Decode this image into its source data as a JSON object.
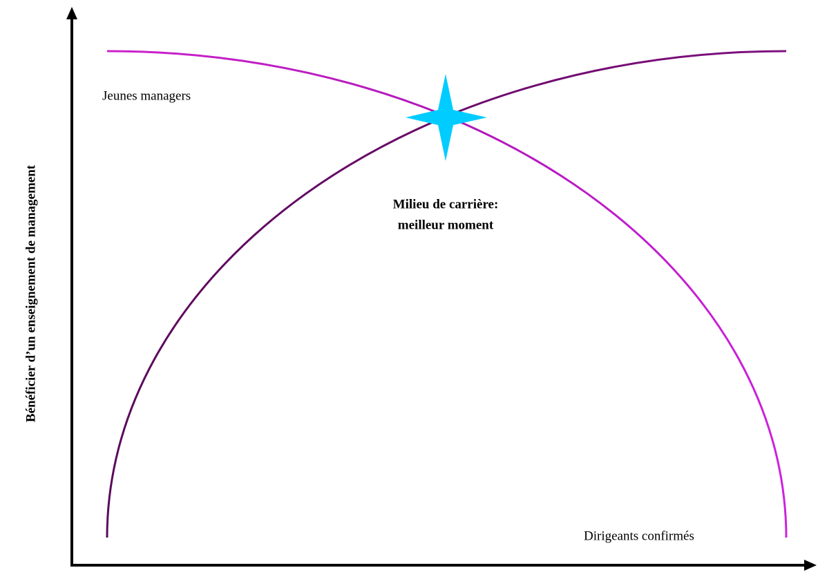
{
  "y_axis_label": "Bénéficier d’un enseignement de management",
  "labels": {
    "start": "Jeunes managers",
    "end": "Dirigeants confirmés"
  },
  "highlight": {
    "line1": "Milieu de carrière:",
    "line2": "meilleur moment"
  }
}
